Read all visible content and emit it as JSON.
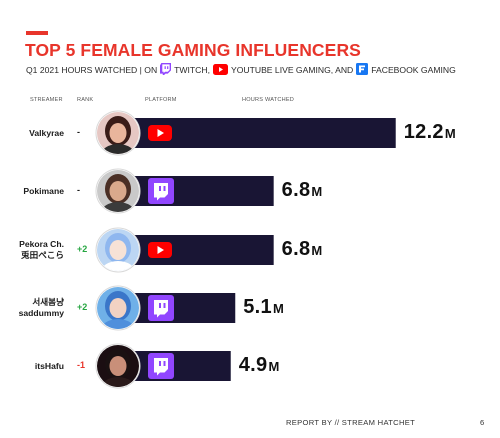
{
  "title": "TOP 5 FEMALE GAMING INFLUENCERS",
  "subtitle": {
    "prefix": "Q1 2021 HOURS WATCHED  | ON",
    "twitch": "TWITCH,",
    "youtube": "YOUTUBE LIVE GAMING, AND",
    "facebook": "FACEBOOK GAMING"
  },
  "headers": {
    "streamer": "STREAMER",
    "rank": "RANK",
    "platform": "PLATFORM",
    "hours": "HOURS WATCHED"
  },
  "footer": "REPORT BY // STREAM HATCHET",
  "page_number": "6",
  "colors": {
    "accent": "#e8352b",
    "bar": "#191534",
    "twitch": "#9146ff",
    "youtube": "#ff0000",
    "facebook": "#1877f2",
    "rank_up": "#26a641",
    "rank_down": "#e8352b"
  },
  "chart_data": {
    "type": "bar",
    "orientation": "horizontal",
    "unit": "M",
    "categories": [
      "Valkyrae",
      "Pokimane",
      "Pekora Ch. 兎田ぺこら",
      "서새봄냥 saddummy",
      "itsHafu"
    ],
    "values": [
      12.2,
      6.8,
      6.8,
      5.1,
      4.9
    ],
    "streamers": [
      {
        "name": [
          "Valkyrae"
        ],
        "rank_change": "-",
        "rank_dir": "same",
        "platform": "youtube",
        "value": 12.2,
        "label": "12.2",
        "unit": "M",
        "avatar": "avatar-valkyrae"
      },
      {
        "name": [
          "Pokimane"
        ],
        "rank_change": "-",
        "rank_dir": "same",
        "platform": "twitch",
        "value": 6.8,
        "label": "6.8",
        "unit": "M",
        "avatar": "avatar-pokimane"
      },
      {
        "name": [
          "Pekora Ch.",
          "兎田ぺこら"
        ],
        "rank_change": "+2",
        "rank_dir": "up",
        "platform": "youtube",
        "value": 6.8,
        "label": "6.8",
        "unit": "M",
        "avatar": "avatar-pekora"
      },
      {
        "name": [
          "서새봄냥",
          "saddummy"
        ],
        "rank_change": "+2",
        "rank_dir": "up",
        "platform": "twitch",
        "value": 5.1,
        "label": "5.1",
        "unit": "M",
        "avatar": "avatar-saddummy"
      },
      {
        "name": [
          "itsHafu"
        ],
        "rank_change": "-1",
        "rank_dir": "down",
        "platform": "twitch",
        "value": 4.9,
        "label": "4.9",
        "unit": "M",
        "avatar": "avatar-itshafu"
      }
    ]
  }
}
